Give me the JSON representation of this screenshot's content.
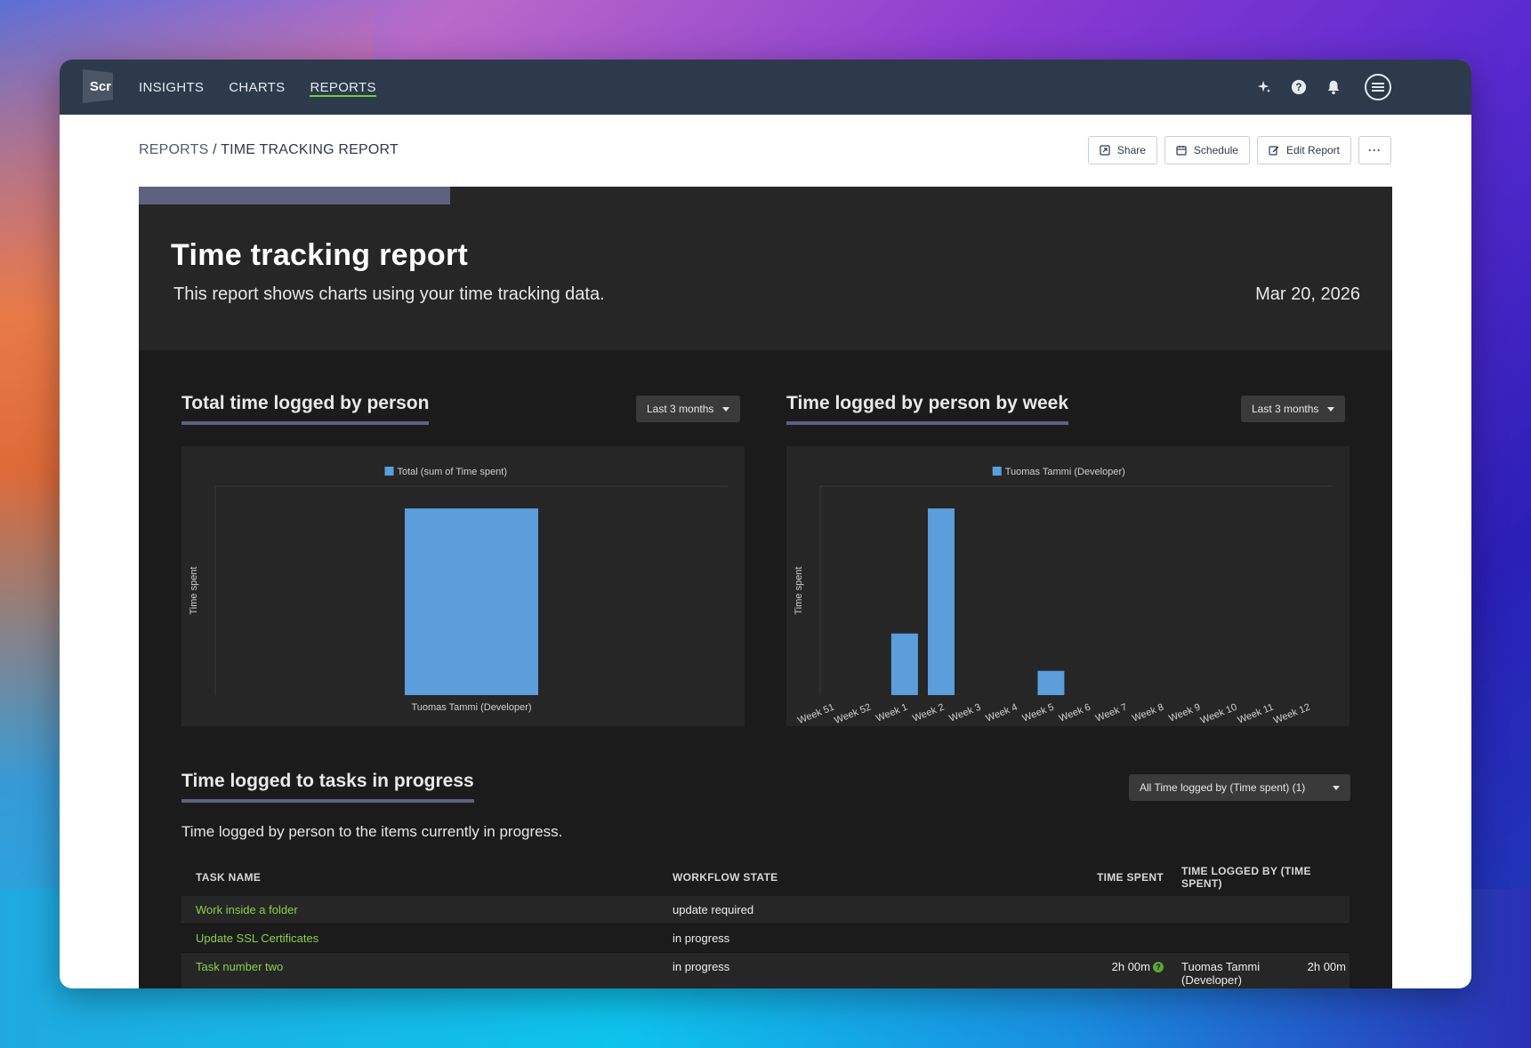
{
  "nav": {
    "logo_text": "Scr",
    "items": [
      {
        "label": "INSIGHTS",
        "active": false
      },
      {
        "label": "CHARTS",
        "active": false
      },
      {
        "label": "REPORTS",
        "active": true
      }
    ],
    "icons": [
      "sparkle-icon",
      "help-icon",
      "bell-icon",
      "menu-icon"
    ]
  },
  "breadcrumb": {
    "root": "REPORTS",
    "separator": " / ",
    "current": "TIME TRACKING REPORT"
  },
  "actions": {
    "share": "Share",
    "schedule": "Schedule",
    "edit": "Edit Report",
    "more": "···"
  },
  "report": {
    "title": "Time tracking report",
    "subtitle": "This report shows charts using your time tracking data.",
    "date": "Mar 20, 2026"
  },
  "panel1": {
    "title": "Total time logged by person",
    "range": "Last 3 months"
  },
  "panel2": {
    "title": "Time logged by person by week",
    "range": "Last 3 months"
  },
  "chart_data": [
    {
      "type": "bar",
      "legend": "Total (sum of Time spent)",
      "ylabel": "Time spent",
      "categories": [
        "Tuomas Tammi (Developer)"
      ],
      "values": [
        1
      ]
    },
    {
      "type": "bar",
      "legend": "Tuomas Tammi (Developer)",
      "ylabel": "Time spent",
      "categories": [
        "Week 51",
        "Week 52",
        "Week 1",
        "Week 2",
        "Week 3",
        "Week 4",
        "Week 5",
        "Week 6",
        "Week 7",
        "Week 8",
        "Week 9",
        "Week 10",
        "Week 11",
        "Week 12"
      ],
      "values": [
        0,
        0,
        0.33,
        1,
        0,
        0,
        0.13,
        0,
        0,
        0,
        0,
        0,
        0,
        0
      ]
    }
  ],
  "colors": {
    "bar": "#5b9edb",
    "accent": "#7ac943",
    "panel": "#262627"
  },
  "tasks": {
    "title": "Time logged to tasks in progress",
    "filter": "All Time logged by (Time spent) (1)",
    "description": "Time logged by person to the items currently in progress.",
    "columns": [
      "TASK NAME",
      "WORKFLOW STATE",
      "TIME SPENT",
      "TIME LOGGED BY (TIME SPENT)"
    ],
    "rows": [
      {
        "name": "Work inside a folder",
        "state": "update required",
        "time": "",
        "by": "",
        "by_time": ""
      },
      {
        "name": "Update SSL Certificates",
        "state": "in progress",
        "time": "",
        "by": "",
        "by_time": ""
      },
      {
        "name": "Task number two",
        "state": "in progress",
        "time": "2h 00m",
        "by": "Tuomas Tammi (Developer)",
        "by_time": "2h 00m"
      }
    ]
  }
}
